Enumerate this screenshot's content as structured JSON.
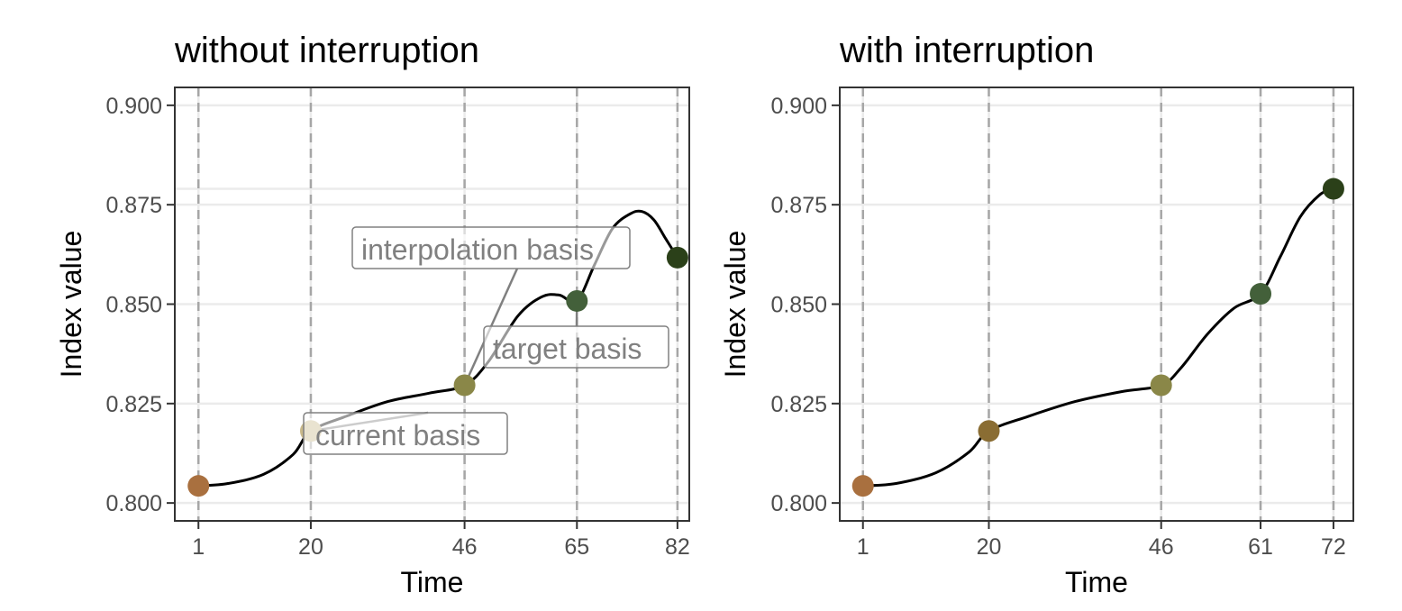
{
  "chart_data": [
    {
      "type": "line",
      "title": "without interruption",
      "xlabel": "Time",
      "ylabel": "Index value",
      "xlim": [
        -3,
        84
      ],
      "ylim": [
        0.7955,
        0.9045
      ],
      "x_ticks": [
        1,
        20,
        46,
        65,
        82
      ],
      "y_ticks": [
        0.8,
        0.825,
        0.85,
        0.875,
        0.9
      ],
      "y_tick_labels": [
        "0.800",
        "0.825",
        "0.850",
        "0.875",
        "0.900"
      ],
      "extra_hline": 0.879,
      "vlines": [
        1,
        20,
        46,
        65,
        82
      ],
      "grid": true,
      "curve": [
        [
          1,
          0.8043
        ],
        [
          6,
          0.8049
        ],
        [
          12,
          0.8072
        ],
        [
          17,
          0.8122
        ],
        [
          20,
          0.8181
        ],
        [
          26,
          0.8218
        ],
        [
          33,
          0.8255
        ],
        [
          40,
          0.8276
        ],
        [
          46,
          0.8296
        ],
        [
          50,
          0.8355
        ],
        [
          55,
          0.847
        ],
        [
          59,
          0.8518
        ],
        [
          62,
          0.8523
        ],
        [
          65,
          0.8508
        ],
        [
          68,
          0.86
        ],
        [
          71,
          0.869
        ],
        [
          74,
          0.8727
        ],
        [
          76,
          0.8733
        ],
        [
          78,
          0.8712
        ],
        [
          80,
          0.8665
        ],
        [
          82,
          0.8617
        ]
      ],
      "points": [
        {
          "x": 1,
          "y": 0.8043,
          "color": "#a9703f"
        },
        {
          "x": 20,
          "y": 0.8181,
          "color": "#c9b98a"
        },
        {
          "x": 46,
          "y": 0.8296,
          "color": "#8a8748"
        },
        {
          "x": 65,
          "y": 0.8508,
          "color": "#43603a"
        },
        {
          "x": 82,
          "y": 0.8617,
          "color": "#2b4019"
        }
      ],
      "annotations": [
        {
          "label": "current basis",
          "x": 20,
          "y": 0.8181
        },
        {
          "label": "interpolation basis",
          "x": 46,
          "y": 0.8296
        },
        {
          "label": "target basis",
          "x": 65,
          "y": 0.8508
        }
      ]
    },
    {
      "type": "line",
      "title": "with interruption",
      "xlabel": "Time",
      "ylabel": "Index value",
      "xlim": [
        -2.5,
        75
      ],
      "ylim": [
        0.7955,
        0.9045
      ],
      "x_ticks": [
        1,
        20,
        46,
        61,
        72
      ],
      "y_ticks": [
        0.8,
        0.825,
        0.85,
        0.875,
        0.9
      ],
      "y_tick_labels": [
        "0.800",
        "0.825",
        "0.850",
        "0.875",
        "0.900"
      ],
      "vlines": [
        1,
        20,
        46,
        61,
        72
      ],
      "grid": true,
      "curve": [
        [
          1,
          0.8043
        ],
        [
          6,
          0.8049
        ],
        [
          12,
          0.8076
        ],
        [
          17,
          0.8128
        ],
        [
          20,
          0.8181
        ],
        [
          26,
          0.8218
        ],
        [
          33,
          0.8255
        ],
        [
          40,
          0.828
        ],
        [
          46,
          0.8296
        ],
        [
          49,
          0.834
        ],
        [
          53,
          0.8425
        ],
        [
          57,
          0.849
        ],
        [
          61,
          0.8526
        ],
        [
          64,
          0.862
        ],
        [
          67,
          0.872
        ],
        [
          70,
          0.8776
        ],
        [
          72,
          0.879
        ]
      ],
      "points": [
        {
          "x": 1,
          "y": 0.8043,
          "color": "#a9703f"
        },
        {
          "x": 20,
          "y": 0.8181,
          "color": "#8a6d33"
        },
        {
          "x": 46,
          "y": 0.8296,
          "color": "#8a8748"
        },
        {
          "x": 61,
          "y": 0.8526,
          "color": "#43603a"
        },
        {
          "x": 72,
          "y": 0.879,
          "color": "#2b4019"
        }
      ],
      "annotations": []
    }
  ]
}
